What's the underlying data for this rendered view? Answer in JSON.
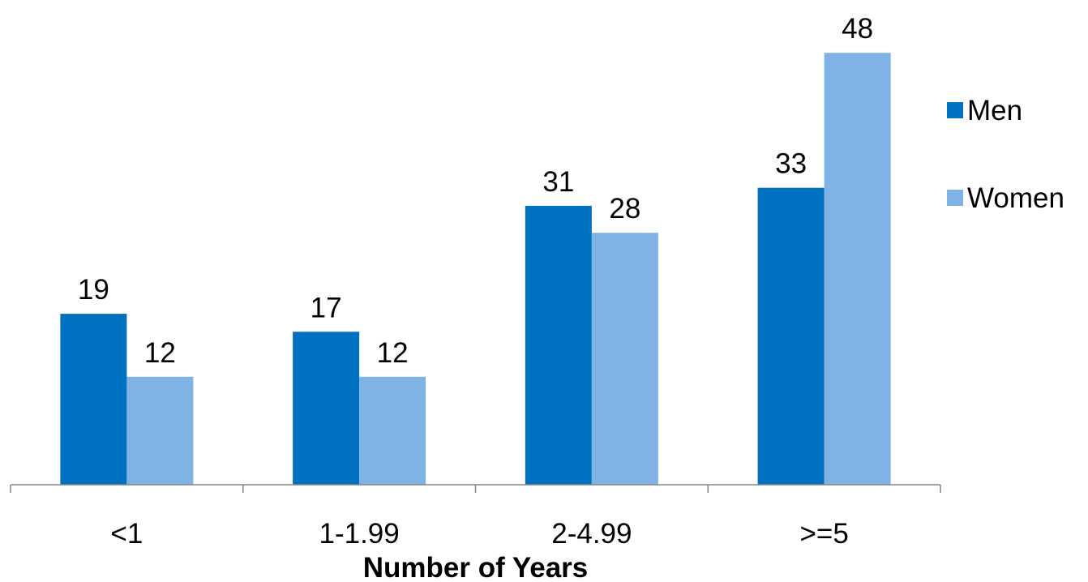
{
  "chart_data": {
    "type": "bar",
    "title": "",
    "xlabel": "Number of Years",
    "ylabel": "",
    "categories": [
      "<1",
      "1-1.99",
      "2-4.99",
      ">=5"
    ],
    "series": [
      {
        "name": "Men",
        "values": [
          19,
          17,
          31,
          33
        ],
        "color": "#0070C0"
      },
      {
        "name": "Women",
        "values": [
          12,
          12,
          28,
          48
        ],
        "color": "#7FB2E5"
      }
    ],
    "ylim": [
      0,
      50
    ],
    "grid": false,
    "legend": "right",
    "data_labels": true
  }
}
